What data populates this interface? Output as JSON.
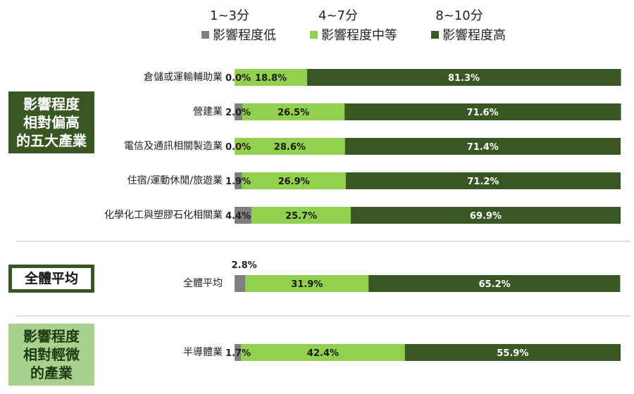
{
  "chart_data": {
    "type": "bar",
    "stacked": true,
    "orientation": "horizontal",
    "legend_position": "top",
    "categories": [
      "倉儲或運輸輔助業",
      "營建業",
      "電信及通訊相關製造業",
      "住宿/運動休閒/旅遊業",
      "化學化工與塑膠石化相關業",
      "全體平均",
      "半導體業"
    ],
    "series": [
      {
        "name": "影響程度低",
        "range_label": "1~3分",
        "color": "#7f7f7f",
        "values": [
          0.0,
          2.0,
          0.0,
          1.9,
          4.4,
          2.8,
          1.7
        ]
      },
      {
        "name": "影響程度中等",
        "range_label": "4~7分",
        "color": "#92d050",
        "values": [
          18.8,
          26.5,
          28.6,
          26.9,
          25.7,
          31.9,
          42.4
        ]
      },
      {
        "name": "影響程度高",
        "range_label": "8~10分",
        "color": "#385723",
        "values": [
          81.3,
          71.6,
          71.4,
          71.2,
          69.9,
          65.2,
          55.9
        ]
      }
    ],
    "data_labels": [
      [
        "0.0%",
        "18.8%",
        "81.3%"
      ],
      [
        "2.0%",
        "26.5%",
        "71.6%"
      ],
      [
        "0.0%",
        "28.6%",
        "71.4%"
      ],
      [
        "1.9%",
        "26.9%",
        "71.2%"
      ],
      [
        "4.4%",
        "25.7%",
        "69.9%"
      ],
      [
        "2.8%",
        "31.9%",
        "65.2%"
      ],
      [
        "1.7%",
        "42.4%",
        "55.9%"
      ]
    ],
    "xlim": [
      0,
      100
    ]
  },
  "groups": {
    "high": "影響程度\n相對偏高\n的五大產業",
    "average": "全體平均",
    "low": "影響程度\n相對輕微\n的產業"
  },
  "colors": {
    "high_group_bg": "#385723",
    "low_group_bg": "#a9d18e",
    "divider": "#bfbfbf"
  }
}
